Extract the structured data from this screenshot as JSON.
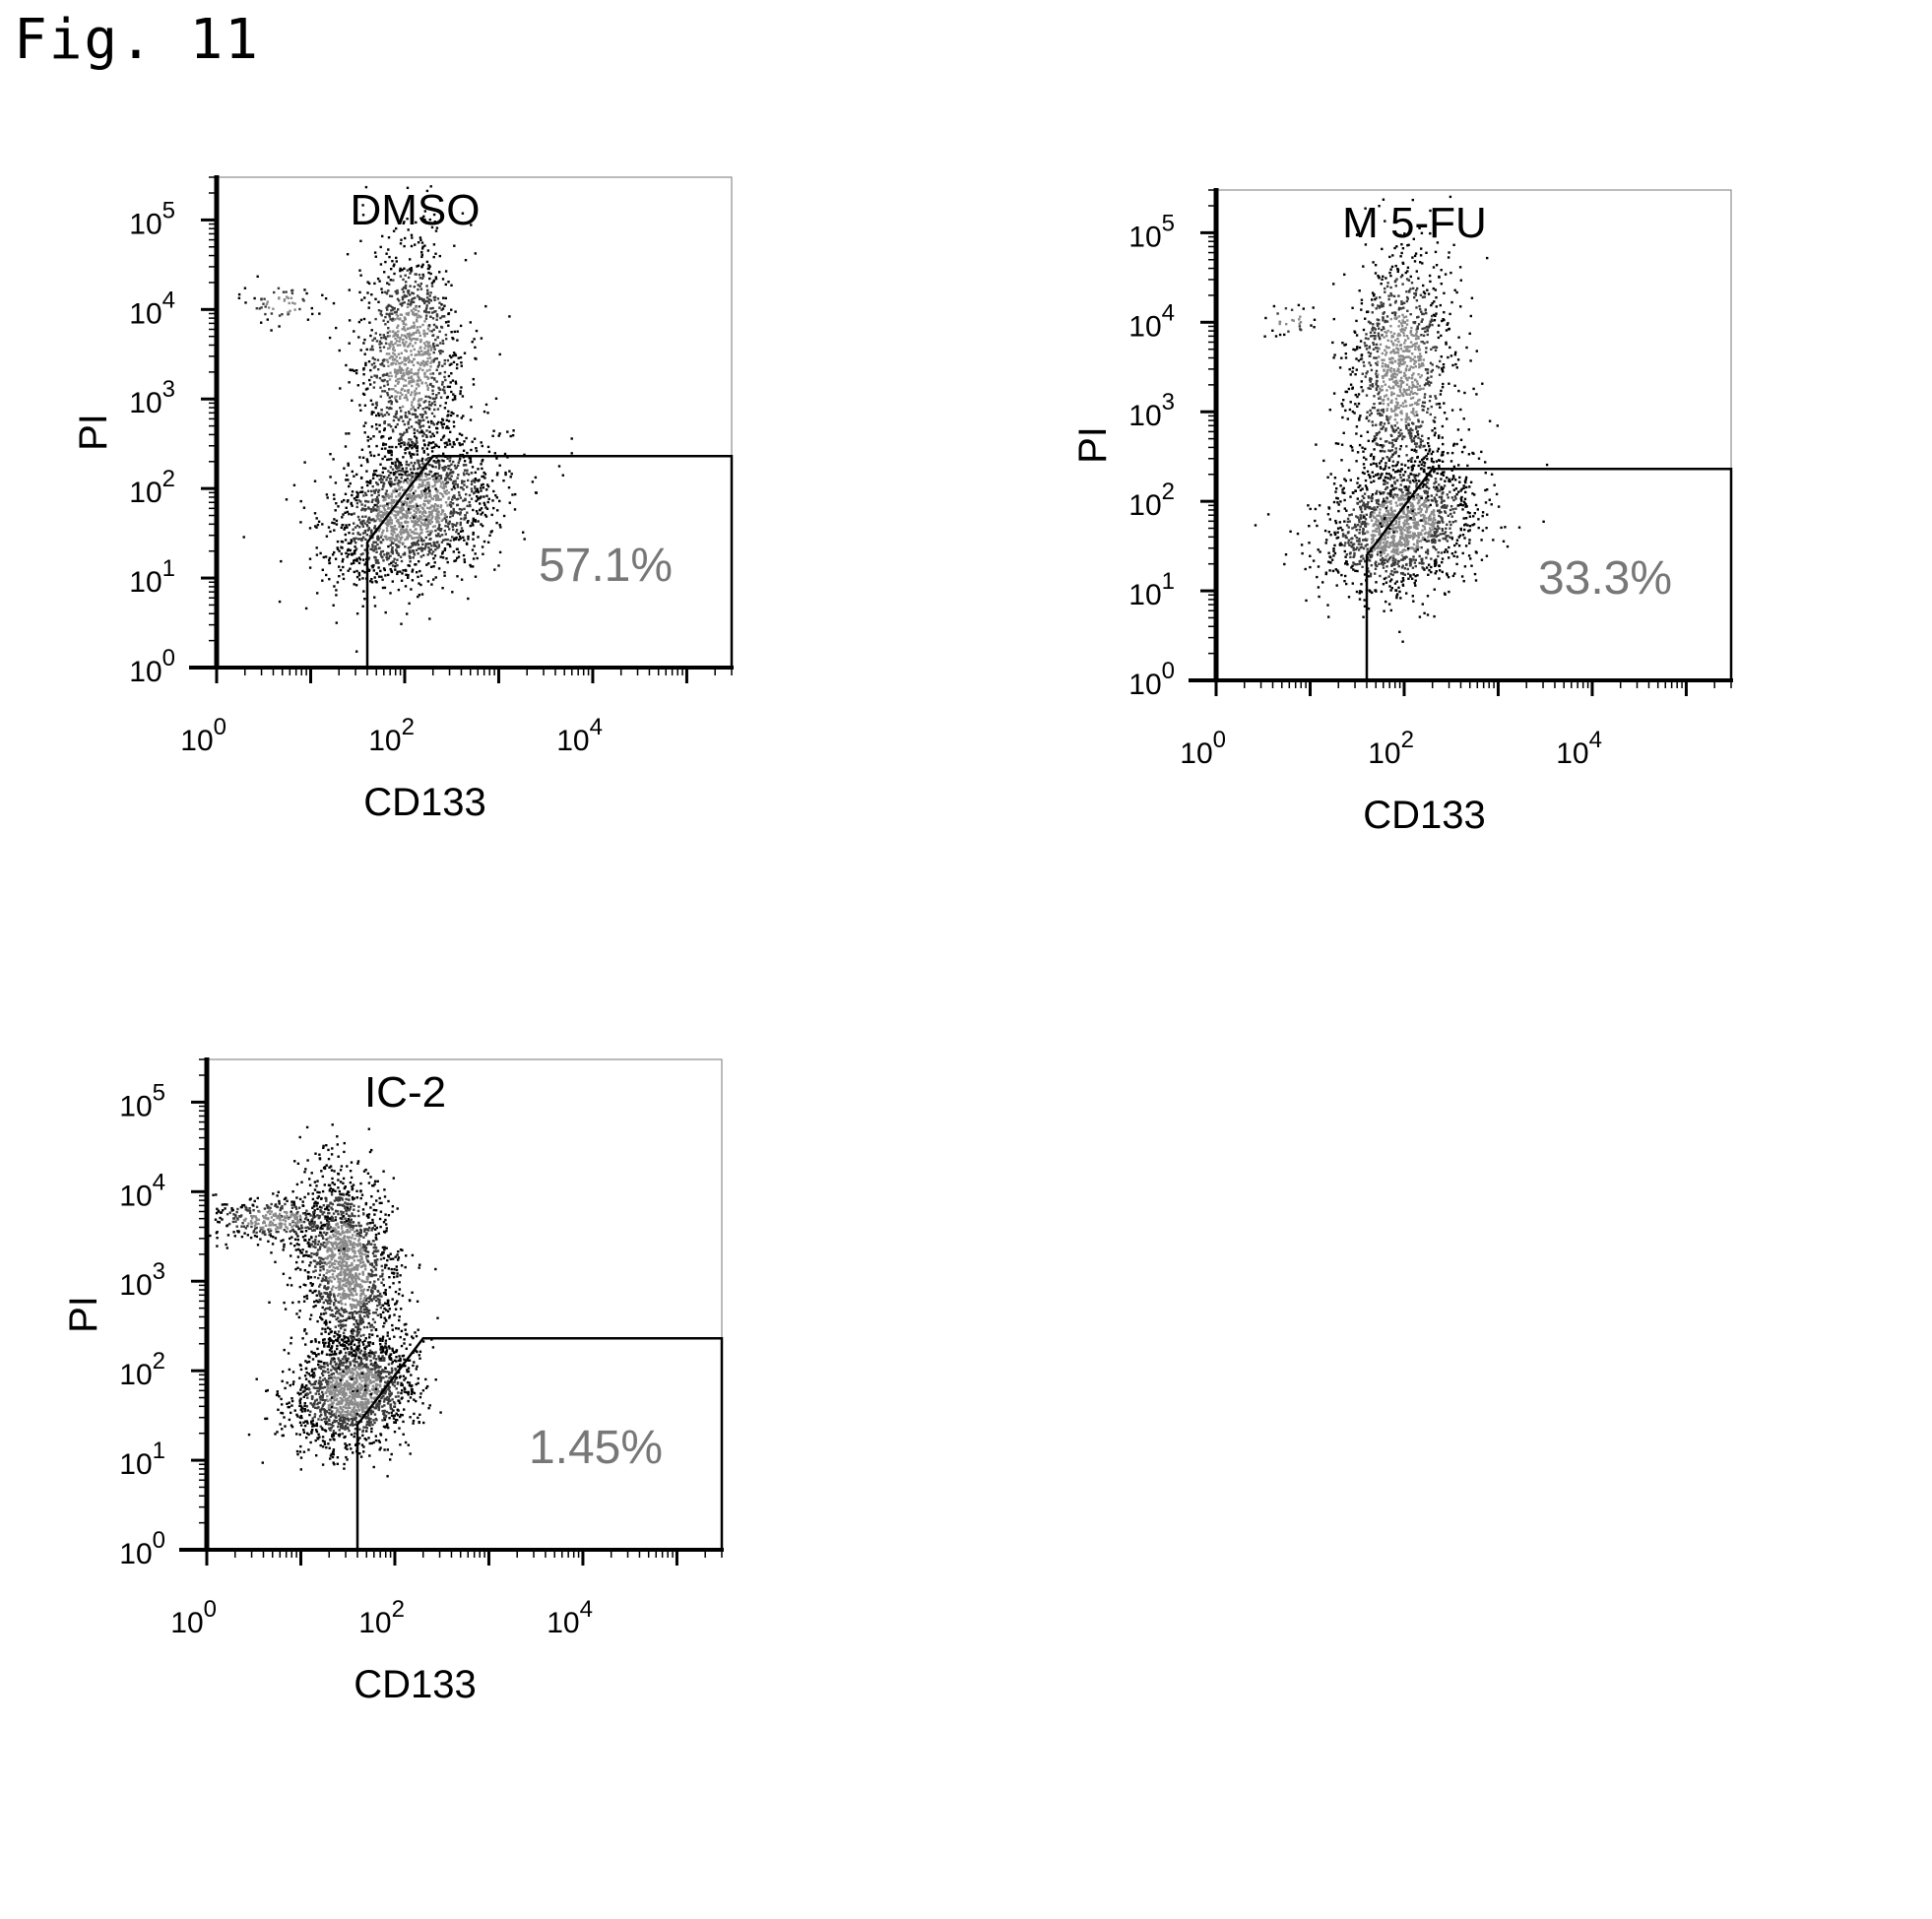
{
  "figure_title": "Fig. 11",
  "chart_data": [
    {
      "type": "scatter",
      "title": "DMSO",
      "xlabel": "CD133",
      "ylabel": "PI",
      "x_scale": "log",
      "y_scale": "log",
      "xlim": [
        1,
        300000
      ],
      "ylim": [
        1,
        300000
      ],
      "x_ticks": [
        {
          "base": "10",
          "exp": "0"
        },
        {
          "base": "10",
          "exp": "2"
        },
        {
          "base": "10",
          "exp": "4"
        }
      ],
      "y_ticks": [
        {
          "base": "10",
          "exp": "0"
        },
        {
          "base": "10",
          "exp": "1"
        },
        {
          "base": "10",
          "exp": "2"
        },
        {
          "base": "10",
          "exp": "3"
        },
        {
          "base": "10",
          "exp": "4"
        },
        {
          "base": "10",
          "exp": "5"
        }
      ],
      "gate_percent": "57.1%",
      "gate_polygon": [
        [
          40,
          1
        ],
        [
          40,
          25
        ],
        [
          200,
          230
        ],
        [
          300000,
          230
        ],
        [
          300000,
          1
        ]
      ],
      "populations": [
        {
          "cx": 120,
          "cy": 60,
          "sx": 0.5,
          "sy": 0.35,
          "rot": 0.7,
          "n": 1800
        },
        {
          "cx": 110,
          "cy": 3000,
          "sx": 0.28,
          "sy": 0.65,
          "rot": 0.0,
          "n": 1200
        },
        {
          "cx": 5,
          "cy": 12000,
          "sx": 0.2,
          "sy": 0.12,
          "rot": 0.0,
          "n": 60
        }
      ]
    },
    {
      "type": "scatter",
      "title": "M 5-FU",
      "xlabel": "CD133",
      "ylabel": "PI",
      "x_scale": "log",
      "y_scale": "log",
      "xlim": [
        1,
        300000
      ],
      "ylim": [
        1,
        300000
      ],
      "x_ticks": [
        {
          "base": "10",
          "exp": "0"
        },
        {
          "base": "10",
          "exp": "2"
        },
        {
          "base": "10",
          "exp": "4"
        }
      ],
      "y_ticks": [
        {
          "base": "10",
          "exp": "0"
        },
        {
          "base": "10",
          "exp": "1"
        },
        {
          "base": "10",
          "exp": "2"
        },
        {
          "base": "10",
          "exp": "3"
        },
        {
          "base": "10",
          "exp": "4"
        },
        {
          "base": "10",
          "exp": "5"
        }
      ],
      "gate_percent": "33.3%",
      "gate_polygon": [
        [
          40,
          1
        ],
        [
          40,
          25
        ],
        [
          200,
          230
        ],
        [
          300000,
          230
        ],
        [
          300000,
          1
        ]
      ],
      "populations": [
        {
          "cx": 90,
          "cy": 55,
          "sx": 0.45,
          "sy": 0.35,
          "rot": 0.7,
          "n": 1500
        },
        {
          "cx": 90,
          "cy": 3000,
          "sx": 0.28,
          "sy": 0.7,
          "rot": 0.0,
          "n": 1200
        },
        {
          "cx": 6,
          "cy": 11000,
          "sx": 0.15,
          "sy": 0.1,
          "rot": 0.0,
          "n": 30
        }
      ]
    },
    {
      "type": "scatter",
      "title": "IC-2",
      "xlabel": "CD133",
      "ylabel": "PI",
      "x_scale": "log",
      "y_scale": "log",
      "xlim": [
        1,
        300000
      ],
      "ylim": [
        1,
        300000
      ],
      "x_ticks": [
        {
          "base": "10",
          "exp": "0"
        },
        {
          "base": "10",
          "exp": "2"
        },
        {
          "base": "10",
          "exp": "4"
        }
      ],
      "y_ticks": [
        {
          "base": "10",
          "exp": "0"
        },
        {
          "base": "10",
          "exp": "1"
        },
        {
          "base": "10",
          "exp": "2"
        },
        {
          "base": "10",
          "exp": "3"
        },
        {
          "base": "10",
          "exp": "4"
        },
        {
          "base": "10",
          "exp": "5"
        }
      ],
      "gate_percent": "1.45%",
      "gate_polygon": [
        [
          40,
          1
        ],
        [
          40,
          25
        ],
        [
          200,
          230
        ],
        [
          300000,
          230
        ],
        [
          300000,
          1
        ]
      ],
      "populations": [
        {
          "cx": 35,
          "cy": 60,
          "sx": 0.35,
          "sy": 0.3,
          "rot": 0.6,
          "n": 1600
        },
        {
          "cx": 30,
          "cy": 1500,
          "sx": 0.25,
          "sy": 0.55,
          "rot": 0.15,
          "n": 1600
        },
        {
          "cx": 5,
          "cy": 5000,
          "sx": 0.35,
          "sy": 0.12,
          "rot": 0.0,
          "n": 350
        }
      ]
    }
  ]
}
